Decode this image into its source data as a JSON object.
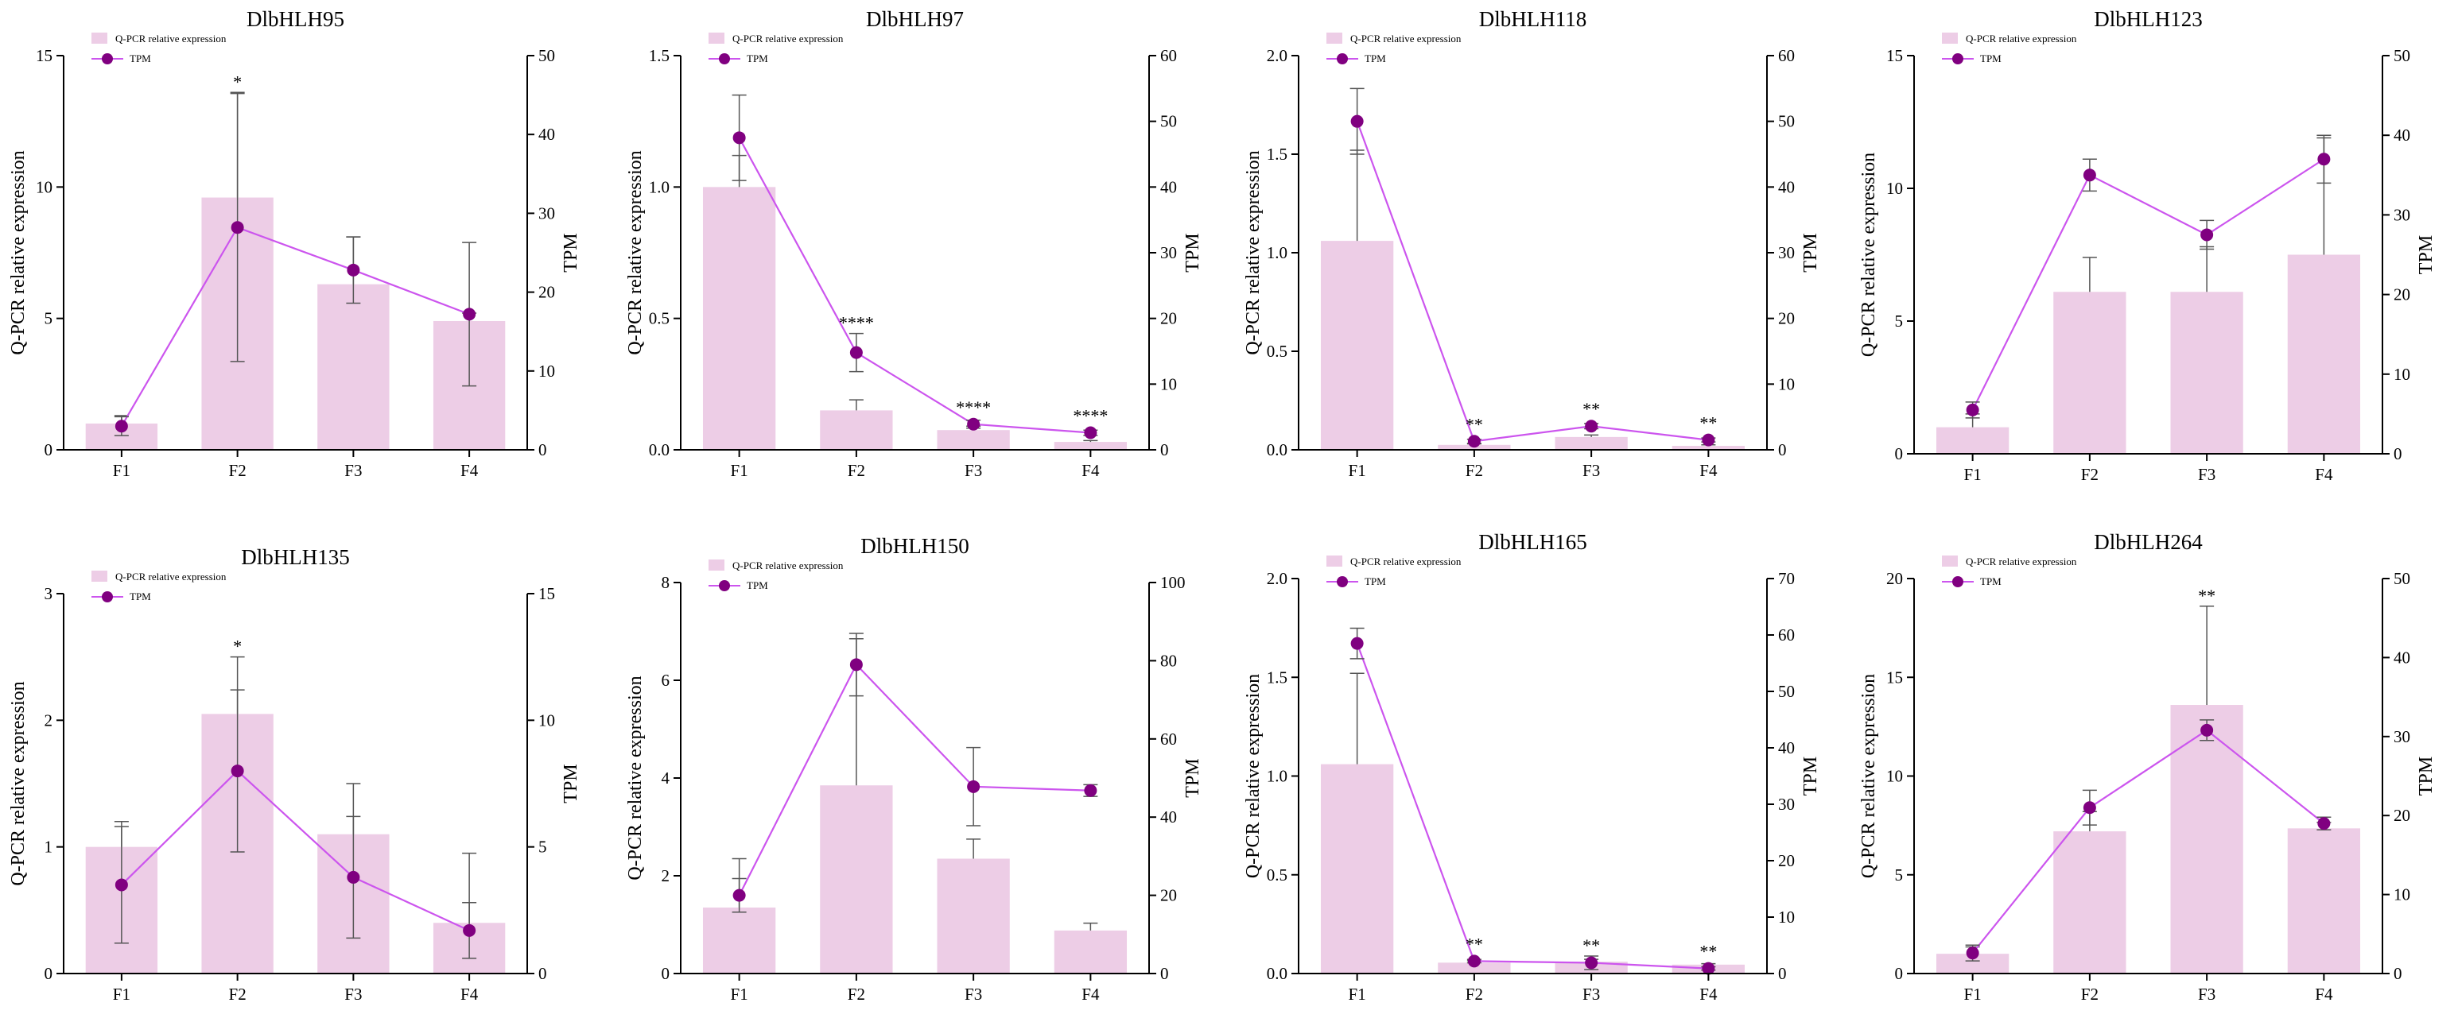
{
  "figure": {
    "background": "#ffffff"
  },
  "colors": {
    "bar": "#edcde6",
    "line": "#cc55ee",
    "marker": "#800080",
    "axis": "#000000",
    "errorbar": "#555555"
  },
  "legend": {
    "bar_label": "Q-PCR relative expression",
    "line_label": "TPM"
  },
  "chart_data": [
    {
      "type": "bar+line",
      "title": "DlbHLH95",
      "categories": [
        "F1",
        "F2",
        "F3",
        "F4"
      ],
      "bar_series": {
        "name": "Q-PCR relative expression",
        "values": [
          1.0,
          9.6,
          6.3,
          4.9
        ],
        "errors": [
          0.3,
          4.0,
          1.8,
          0.3
        ]
      },
      "line_series": {
        "name": "TPM",
        "values": [
          3.0,
          28.2,
          22.8,
          17.2
        ],
        "errors": [
          1.2,
          17.0,
          4.2,
          9.1
        ]
      },
      "significance": [
        "",
        "*",
        "",
        ""
      ],
      "ylabel": "Q-PCR relative expression",
      "y2label": "TPM",
      "ylim": [
        0,
        15
      ],
      "yticks": [
        "0",
        "5",
        "10",
        "15"
      ],
      "y2lim": [
        0,
        50
      ],
      "y2ticks": [
        "0",
        "10",
        "20",
        "30",
        "40",
        "50"
      ]
    },
    {
      "type": "bar+line",
      "title": "DlbHLH97",
      "categories": [
        "F1",
        "F2",
        "F3",
        "F4"
      ],
      "bar_series": {
        "name": "Q-PCR relative expression",
        "values": [
          1.0,
          0.15,
          0.075,
          0.03
        ],
        "errors": [
          0.12,
          0.04,
          0.015,
          0.005
        ]
      },
      "line_series": {
        "name": "TPM",
        "values": [
          47.5,
          14.8,
          3.9,
          2.6
        ],
        "errors": [
          6.5,
          2.9,
          0.6,
          0.4
        ]
      },
      "significance": [
        "",
        "****",
        "****",
        "****"
      ],
      "ylabel": "Q-PCR relative expression",
      "y2label": "TPM",
      "ylim": [
        0,
        1.5
      ],
      "yticks": [
        "0.0",
        "0.5",
        "1.0",
        "1.5"
      ],
      "y2lim": [
        0,
        60
      ],
      "y2ticks": [
        "0",
        "10",
        "20",
        "30",
        "40",
        "50",
        "60"
      ]
    },
    {
      "type": "bar+line",
      "title": "DlbHLH118",
      "categories": [
        "F1",
        "F2",
        "F3",
        "F4"
      ],
      "bar_series": {
        "name": "Q-PCR relative expression",
        "values": [
          1.06,
          0.025,
          0.065,
          0.02
        ],
        "errors": [
          0.46,
          0.005,
          0.01,
          0.005
        ]
      },
      "line_series": {
        "name": "TPM",
        "values": [
          50.0,
          1.3,
          3.6,
          1.5
        ],
        "errors": [
          5.0,
          0.3,
          0.4,
          0.3
        ]
      },
      "significance": [
        "",
        "**",
        "**",
        "**"
      ],
      "ylabel": "Q-PCR relative expression",
      "y2label": "TPM",
      "ylim": [
        0,
        2.0
      ],
      "yticks": [
        "0.0",
        "0.5",
        "1.0",
        "1.5",
        "2.0"
      ],
      "y2lim": [
        0,
        60
      ],
      "y2ticks": [
        "0",
        "10",
        "20",
        "30",
        "40",
        "50",
        "60"
      ]
    },
    {
      "type": "bar+line",
      "title": "DlbHLH123",
      "categories": [
        "F1",
        "F2",
        "F3",
        "F4"
      ],
      "bar_series": {
        "name": "Q-PCR relative expression",
        "values": [
          1.0,
          6.1,
          6.1,
          7.5
        ],
        "errors": [
          0.5,
          1.3,
          1.7,
          4.4
        ]
      },
      "line_series": {
        "name": "TPM",
        "values": [
          5.5,
          35.0,
          27.5,
          37.0
        ],
        "errors": [
          1.0,
          2.0,
          1.8,
          3.0
        ]
      },
      "significance": [
        "",
        "",
        "",
        ""
      ],
      "ylabel": "Q-PCR relative expression",
      "y2label": "TPM",
      "ylim": [
        0,
        15
      ],
      "yticks": [
        "0",
        "5",
        "10",
        "15"
      ],
      "y2lim": [
        0,
        50
      ],
      "y2ticks": [
        "0",
        "10",
        "20",
        "30",
        "40",
        "50"
      ]
    },
    {
      "type": "bar+line",
      "title": "DlbHLH135",
      "categories": [
        "F1",
        "F2",
        "F3",
        "F4"
      ],
      "bar_series": {
        "name": "Q-PCR relative expression",
        "values": [
          1.0,
          2.05,
          1.1,
          0.4
        ],
        "errors": [
          0.2,
          0.45,
          0.4,
          0.55
        ]
      },
      "line_series": {
        "name": "TPM",
        "values": [
          3.5,
          8.0,
          3.8,
          1.7
        ],
        "errors": [
          2.3,
          3.2,
          2.4,
          1.1
        ]
      },
      "significance": [
        "",
        "*",
        "",
        ""
      ],
      "ylabel": "Q-PCR relative expression",
      "y2label": "TPM",
      "ylim": [
        0,
        3
      ],
      "yticks": [
        "0",
        "1",
        "2",
        "3"
      ],
      "y2lim": [
        0,
        15
      ],
      "y2ticks": [
        "0",
        "5",
        "10",
        "15"
      ]
    },
    {
      "type": "bar+line",
      "title": "DlbHLH150",
      "categories": [
        "F1",
        "F2",
        "F3",
        "F4"
      ],
      "bar_series": {
        "name": "Q-PCR relative expression",
        "values": [
          1.35,
          3.85,
          2.35,
          0.88
        ],
        "errors": [
          1.0,
          3.0,
          0.4,
          0.15
        ]
      },
      "line_series": {
        "name": "TPM",
        "values": [
          20.0,
          79.0,
          47.8,
          46.8
        ],
        "errors": [
          4.3,
          8.0,
          10.0,
          1.5
        ]
      },
      "significance": [
        "",
        "",
        "",
        ""
      ],
      "ylabel": "Q-PCR relative expression",
      "y2label": "TPM",
      "ylim": [
        0,
        8
      ],
      "yticks": [
        "0",
        "2",
        "4",
        "6",
        "8"
      ],
      "y2lim": [
        0,
        100
      ],
      "y2ticks": [
        "0",
        "20",
        "40",
        "60",
        "80",
        "100"
      ]
    },
    {
      "type": "bar+line",
      "title": "DlbHLH165",
      "categories": [
        "F1",
        "F2",
        "F3",
        "F4"
      ],
      "bar_series": {
        "name": "Q-PCR relative expression",
        "values": [
          1.06,
          0.055,
          0.06,
          0.045
        ],
        "errors": [
          0.46,
          0.01,
          0.012,
          0.005
        ]
      },
      "line_series": {
        "name": "TPM",
        "values": [
          58.5,
          2.2,
          1.9,
          0.9
        ],
        "errors": [
          2.7,
          0.3,
          1.2,
          0.3
        ]
      },
      "significance": [
        "",
        "**",
        "**",
        "**"
      ],
      "ylabel": "Q-PCR relative expression",
      "y2label": "TPM",
      "ylim": [
        0,
        2.0
      ],
      "yticks": [
        "0.0",
        "0.5",
        "1.0",
        "1.5",
        "2.0"
      ],
      "y2lim": [
        0,
        70
      ],
      "y2ticks": [
        "0",
        "10",
        "20",
        "30",
        "40",
        "50",
        "60",
        "70"
      ]
    },
    {
      "type": "bar+line",
      "title": "DlbHLH264",
      "categories": [
        "F1",
        "F2",
        "F3",
        "F4"
      ],
      "bar_series": {
        "name": "Q-PCR relative expression",
        "values": [
          1.0,
          7.2,
          13.6,
          7.35
        ],
        "errors": [
          0.35,
          1.0,
          5.0,
          0.3
        ]
      },
      "line_series": {
        "name": "TPM",
        "values": [
          2.6,
          21.0,
          30.8,
          19.0
        ],
        "errors": [
          1.0,
          2.2,
          1.3,
          0.8
        ]
      },
      "significance": [
        "",
        "",
        "**",
        ""
      ],
      "ylabel": "Q-PCR relative expression",
      "y2label": "TPM",
      "ylim": [
        0,
        20
      ],
      "yticks": [
        "0",
        "5",
        "10",
        "15",
        "20"
      ],
      "y2lim": [
        0,
        50
      ],
      "y2ticks": [
        "0",
        "10",
        "20",
        "30",
        "40",
        "50"
      ]
    }
  ]
}
